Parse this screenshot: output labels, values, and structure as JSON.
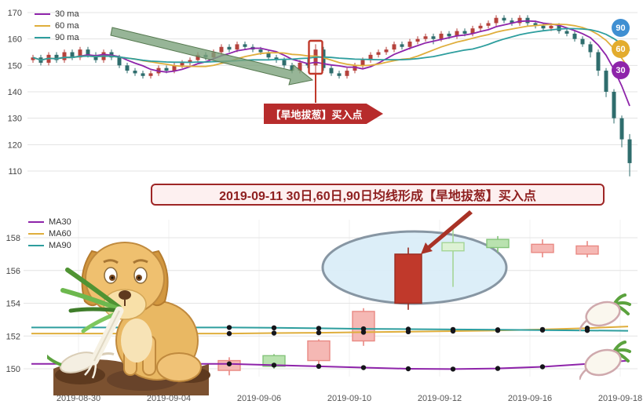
{
  "banner": {
    "text": "2019-09-11 30日,60日,90日均线形成【旱地拔葱】买入点"
  },
  "top_chart": {
    "legend": [
      {
        "label": "30 ma"
      },
      {
        "label": "60 ma"
      },
      {
        "label": "90 ma"
      }
    ],
    "badges": [
      {
        "label": "90",
        "color": "#3f8fd2"
      },
      {
        "label": "60",
        "color": "#e3ac2d"
      },
      {
        "label": "30",
        "color": "#8e24aa"
      }
    ],
    "buy_annotation": "【旱地拔葱】买入点"
  },
  "bottom_chart": {
    "legend": [
      {
        "label": "MA30"
      },
      {
        "label": "MA60"
      },
      {
        "label": "MA90"
      }
    ]
  },
  "colors": {
    "ma30": "#8e24aa",
    "ma60": "#dfae3c",
    "ma90": "#2e9e9e",
    "up": "#b5423c",
    "down": "#2f6d6d",
    "accent": "#c0392b",
    "badge_90": "#3f8fd2",
    "badge_60": "#e3ac2d",
    "badge_30": "#8e24aa",
    "banner_red": "#9e2626",
    "candle_up_fill": "#f5b8b4",
    "candle_down_fill": "#b9e2af",
    "candle_strong_fill": "#c0392b"
  },
  "chart_data": [
    {
      "type": "candlestick",
      "title": "",
      "ylim": [
        108,
        172
      ],
      "y_ticks": [
        110,
        120,
        130,
        140,
        150,
        160,
        170
      ],
      "overlays": [
        {
          "name": "30 ma",
          "window": 30
        },
        {
          "name": "60 ma",
          "window": 60
        },
        {
          "name": "90 ma",
          "window": 90
        }
      ],
      "highlight_index": 36,
      "annotation": "【旱地拔葱】买入点",
      "ohlc": [
        [
          152,
          154,
          151,
          153
        ],
        [
          153,
          154,
          150,
          151
        ],
        [
          151,
          155,
          150,
          154
        ],
        [
          154,
          155,
          151,
          152
        ],
        [
          152,
          156,
          151,
          155
        ],
        [
          155,
          156,
          152,
          153
        ],
        [
          153,
          157,
          152,
          156
        ],
        [
          156,
          157,
          153,
          154
        ],
        [
          154,
          155,
          151,
          152
        ],
        [
          152,
          156,
          151,
          155
        ],
        [
          155,
          156,
          152,
          153
        ],
        [
          153,
          154,
          149,
          150
        ],
        [
          150,
          151,
          147,
          148
        ],
        [
          148,
          149,
          146,
          147
        ],
        [
          147,
          148,
          145,
          146
        ],
        [
          146,
          148,
          145,
          147
        ],
        [
          147,
          150,
          146,
          149
        ],
        [
          149,
          150,
          147,
          148
        ],
        [
          148,
          151,
          147,
          150
        ],
        [
          150,
          152,
          149,
          151
        ],
        [
          151,
          153,
          150,
          152
        ],
        [
          152,
          155,
          151,
          154
        ],
        [
          154,
          155,
          152,
          153
        ],
        [
          153,
          156,
          152,
          155
        ],
        [
          155,
          158,
          154,
          157
        ],
        [
          157,
          158,
          155,
          156
        ],
        [
          156,
          159,
          155,
          158
        ],
        [
          158,
          159,
          156,
          157
        ],
        [
          157,
          158,
          155,
          156
        ],
        [
          156,
          157,
          154,
          155
        ],
        [
          155,
          156,
          152,
          153
        ],
        [
          153,
          154,
          151,
          152
        ],
        [
          152,
          153,
          149,
          150
        ],
        [
          150,
          151,
          147,
          148
        ],
        [
          148,
          152,
          147,
          151
        ],
        [
          151,
          153,
          149,
          150
        ],
        [
          150,
          158,
          147,
          156
        ],
        [
          156,
          157,
          148,
          149
        ],
        [
          149,
          150,
          146,
          147
        ],
        [
          147,
          148,
          145,
          146
        ],
        [
          146,
          149,
          145,
          148
        ],
        [
          148,
          151,
          147,
          150
        ],
        [
          150,
          153,
          149,
          152
        ],
        [
          152,
          155,
          151,
          154
        ],
        [
          154,
          156,
          153,
          155
        ],
        [
          155,
          157,
          154,
          156
        ],
        [
          156,
          159,
          155,
          158
        ],
        [
          158,
          159,
          156,
          157
        ],
        [
          157,
          160,
          156,
          159
        ],
        [
          159,
          161,
          158,
          160
        ],
        [
          160,
          162,
          159,
          161
        ],
        [
          161,
          162,
          158,
          160
        ],
        [
          160,
          163,
          159,
          162
        ],
        [
          162,
          163,
          160,
          161
        ],
        [
          161,
          164,
          160,
          163
        ],
        [
          163,
          164,
          161,
          162
        ],
        [
          162,
          165,
          161,
          164
        ],
        [
          164,
          166,
          163,
          165
        ],
        [
          165,
          167,
          164,
          166
        ],
        [
          166,
          169,
          165,
          168
        ],
        [
          168,
          169,
          166,
          167
        ],
        [
          167,
          168,
          165,
          166
        ],
        [
          166,
          169,
          165,
          168
        ],
        [
          168,
          169,
          165,
          166
        ],
        [
          166,
          167,
          164,
          165
        ],
        [
          165,
          166,
          163,
          164
        ],
        [
          164,
          166,
          163,
          165
        ],
        [
          165,
          166,
          162,
          163
        ],
        [
          163,
          164,
          161,
          162
        ],
        [
          162,
          163,
          159,
          160
        ],
        [
          160,
          161,
          157,
          158
        ],
        [
          158,
          159,
          153,
          155
        ],
        [
          155,
          156,
          146,
          148
        ],
        [
          148,
          149,
          138,
          140
        ],
        [
          140,
          141,
          128,
          130
        ],
        [
          130,
          131,
          119,
          122
        ],
        [
          122,
          124,
          108,
          113
        ]
      ]
    },
    {
      "type": "candlestick",
      "title": "",
      "ylim": [
        149,
        159
      ],
      "y_ticks": [
        150,
        152,
        154,
        156,
        158
      ],
      "x_tick_labels": [
        "2019-08-30",
        "2019-09-04",
        "2019-09-06",
        "2019-09-10",
        "2019-09-12",
        "2019-09-16",
        "2019-09-18"
      ],
      "dates": [
        "2019-09-05",
        "2019-09-06",
        "2019-09-09",
        "2019-09-10",
        "2019-09-11",
        "2019-09-12",
        "2019-09-13",
        "2019-09-16",
        "2019-09-17"
      ],
      "highlight_date": "2019-09-11",
      "ohlc": [
        [
          149.9,
          150.7,
          149.6,
          150.5
        ],
        [
          150.8,
          150.9,
          150.0,
          150.15
        ],
        [
          150.5,
          151.8,
          150.0,
          151.7
        ],
        [
          151.7,
          153.7,
          151.4,
          153.5
        ],
        [
          154.0,
          157.4,
          153.6,
          157.0
        ],
        [
          157.7,
          158.7,
          155.0,
          157.2
        ],
        [
          157.9,
          158.1,
          157.1,
          157.4
        ],
        [
          157.1,
          157.9,
          156.8,
          157.6
        ],
        [
          157.0,
          157.8,
          156.8,
          157.5
        ]
      ],
      "styles": [
        "up",
        "down",
        "up",
        "up",
        "strong",
        "pale",
        "down",
        "up",
        "up"
      ],
      "series": [
        {
          "name": "MA30",
          "values": [
            150.3,
            150.22,
            150.15,
            150.07,
            150.0,
            149.98,
            150.02,
            150.12,
            150.3,
            150.5
          ]
        },
        {
          "name": "MA60",
          "values": [
            152.15,
            152.18,
            152.2,
            152.23,
            152.26,
            152.3,
            152.34,
            152.4,
            152.48,
            152.58
          ]
        },
        {
          "name": "MA90",
          "values": [
            152.52,
            152.5,
            152.47,
            152.44,
            152.42,
            152.4,
            152.38,
            152.36,
            152.34,
            152.32
          ]
        }
      ]
    }
  ]
}
